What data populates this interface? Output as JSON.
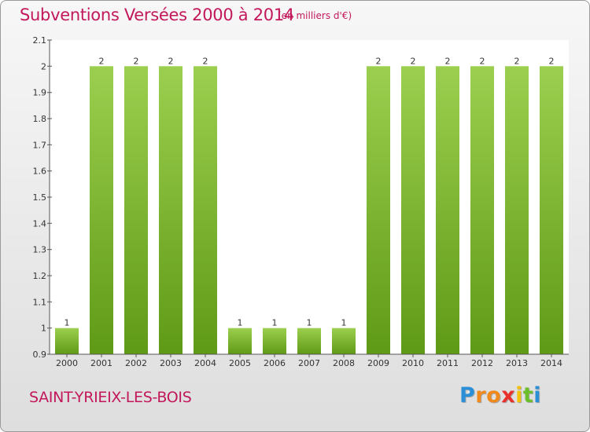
{
  "header": {
    "title": "Subventions Versées 2000 à 2014",
    "subtitle": "(en milliers d'€)"
  },
  "footer": {
    "commune": "SAINT-YRIEIX-LES-BOIS"
  },
  "logo": {
    "letters": [
      "P",
      "r",
      "o",
      "x",
      "i",
      "t",
      "i"
    ],
    "colors": [
      "#2a8fd6",
      "#f08a1c",
      "#f08a1c",
      "#e8312a",
      "#f4c20d",
      "#6bbf2a",
      "#2a8fd6"
    ]
  },
  "chart_data": {
    "type": "bar",
    "title": "Subventions Versées 2000 à 2014",
    "subtitle": "(en milliers d'€)",
    "categories": [
      "2000",
      "2001",
      "2002",
      "2003",
      "2004",
      "2005",
      "2006",
      "2007",
      "2008",
      "2009",
      "2010",
      "2011",
      "2012",
      "2013",
      "2014"
    ],
    "values": [
      1,
      2,
      2,
      2,
      2,
      1,
      1,
      1,
      1,
      2,
      2,
      2,
      2,
      2,
      2
    ],
    "data_labels": [
      "1",
      "2",
      "2",
      "2",
      "2",
      "1",
      "1",
      "1",
      "1",
      "2",
      "2",
      "2",
      "2",
      "2",
      "2"
    ],
    "yticks": [
      "0.9",
      "1",
      "1.1",
      "1.2",
      "1.3",
      "1.4",
      "1.5",
      "1.6",
      "1.7",
      "1.8",
      "1.9",
      "2",
      "2.1"
    ],
    "ylim": [
      0.9,
      2.1
    ],
    "grid": false,
    "colors": {
      "bar_light": "#9ccf4f",
      "bar_dark": "#5f9a16",
      "text": "#333333",
      "axis": "#555555"
    }
  }
}
